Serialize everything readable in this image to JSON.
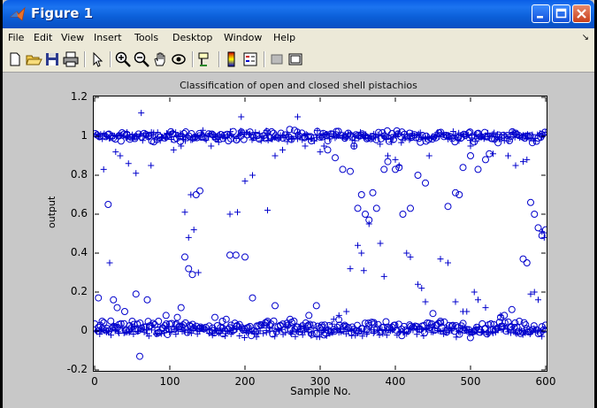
{
  "window": {
    "title": "Figure 1",
    "menu": [
      "File",
      "Edit",
      "View",
      "Insert",
      "Tools",
      "Desktop",
      "Window",
      "Help"
    ]
  },
  "toolbar": {
    "icons": [
      "new-figure-icon",
      "open-file-icon",
      "save-icon",
      "print-icon",
      "edit-plot-arrow-icon",
      "zoom-in-icon",
      "zoom-out-icon",
      "pan-icon",
      "rotate-3d-icon",
      "data-cursor-icon",
      "colorbar-icon",
      "legend-icon",
      "hide-plot-tools-icon",
      "show-plot-tools-icon"
    ]
  },
  "chart_data": {
    "type": "scatter",
    "title": "Classification of open and closed shell pistachios",
    "xlabel": "Sample No.",
    "ylabel": "output",
    "xlim": [
      0,
      600
    ],
    "ylim": [
      -0.2,
      1.2
    ],
    "xticks": [
      "0",
      "100",
      "200",
      "300",
      "400",
      "500",
      "600"
    ],
    "yticks": [
      "-0.2",
      "0",
      "0.2",
      "0.4",
      "0.6",
      "0.8",
      "1",
      "1.2"
    ],
    "grid": false,
    "marker_color": "#0000cc",
    "series": [
      {
        "marker": "plus",
        "points": [
          [
            5,
            1.0
          ],
          [
            12,
            0.83
          ],
          [
            20,
            0.35
          ],
          [
            28,
            0.92
          ],
          [
            34,
            0.9
          ],
          [
            45,
            0.86
          ],
          [
            55,
            0.81
          ],
          [
            62,
            1.12
          ],
          [
            75,
            0.85
          ],
          [
            95,
            0.99
          ],
          [
            105,
            0.93
          ],
          [
            115,
            0.95
          ],
          [
            120,
            0.61
          ],
          [
            125,
            0.48
          ],
          [
            128,
            0.7
          ],
          [
            132,
            0.52
          ],
          [
            138,
            0.3
          ],
          [
            155,
            0.95
          ],
          [
            165,
            0.97
          ],
          [
            180,
            0.6
          ],
          [
            190,
            0.61
          ],
          [
            195,
            1.1
          ],
          [
            200,
            0.77
          ],
          [
            210,
            0.8
          ],
          [
            230,
            0.62
          ],
          [
            240,
            0.9
          ],
          [
            250,
            0.93
          ],
          [
            270,
            1.1
          ],
          [
            280,
            0.95
          ],
          [
            300,
            0.92
          ],
          [
            305,
            0.95
          ],
          [
            318,
            0.06
          ],
          [
            325,
            0.08
          ],
          [
            335,
            0.1
          ],
          [
            340,
            0.32
          ],
          [
            345,
            0.95
          ],
          [
            350,
            0.44
          ],
          [
            355,
            0.4
          ],
          [
            358,
            0.31
          ],
          [
            365,
            0.55
          ],
          [
            380,
            0.45
          ],
          [
            385,
            0.28
          ],
          [
            390,
            0.9
          ],
          [
            395,
            0.97
          ],
          [
            400,
            0.88
          ],
          [
            405,
            0.85
          ],
          [
            415,
            0.4
          ],
          [
            420,
            0.38
          ],
          [
            430,
            0.24
          ],
          [
            435,
            0.22
          ],
          [
            440,
            0.15
          ],
          [
            445,
            0.9
          ],
          [
            460,
            0.37
          ],
          [
            470,
            0.35
          ],
          [
            480,
            0.15
          ],
          [
            490,
            0.1
          ],
          [
            495,
            0.1
          ],
          [
            500,
            0.95
          ],
          [
            505,
            0.2
          ],
          [
            510,
            0.16
          ],
          [
            520,
            0.12
          ],
          [
            530,
            0.91
          ],
          [
            540,
            0.08
          ],
          [
            550,
            0.9
          ],
          [
            560,
            0.85
          ],
          [
            570,
            0.87
          ],
          [
            575,
            0.88
          ],
          [
            580,
            0.19
          ],
          [
            585,
            0.2
          ],
          [
            590,
            0.16
          ],
          [
            595,
            0.51
          ],
          [
            598,
            0.48
          ]
        ]
      },
      {
        "marker": "circle",
        "points": [
          [
            5,
            0.17
          ],
          [
            10,
            0.05
          ],
          [
            18,
            0.65
          ],
          [
            25,
            0.16
          ],
          [
            30,
            0.12
          ],
          [
            40,
            0.1
          ],
          [
            50,
            0.05
          ],
          [
            55,
            0.19
          ],
          [
            60,
            -0.13
          ],
          [
            70,
            0.16
          ],
          [
            85,
            0.05
          ],
          [
            95,
            0.08
          ],
          [
            110,
            0.07
          ],
          [
            115,
            0.12
          ],
          [
            120,
            0.38
          ],
          [
            125,
            0.32
          ],
          [
            130,
            0.29
          ],
          [
            135,
            0.7
          ],
          [
            140,
            0.72
          ],
          [
            160,
            0.07
          ],
          [
            170,
            0.05
          ],
          [
            175,
            0.06
          ],
          [
            180,
            0.39
          ],
          [
            188,
            0.39
          ],
          [
            200,
            0.38
          ],
          [
            210,
            0.17
          ],
          [
            230,
            0.05
          ],
          [
            240,
            0.13
          ],
          [
            260,
            0.06
          ],
          [
            270,
            0.02
          ],
          [
            285,
            0.08
          ],
          [
            295,
            0.13
          ],
          [
            305,
            -0.02
          ],
          [
            310,
            0.93
          ],
          [
            320,
            0.89
          ],
          [
            330,
            0.83
          ],
          [
            340,
            0.82
          ],
          [
            345,
            0.95
          ],
          [
            350,
            0.63
          ],
          [
            355,
            0.7
          ],
          [
            360,
            0.6
          ],
          [
            365,
            0.57
          ],
          [
            370,
            0.71
          ],
          [
            375,
            0.63
          ],
          [
            385,
            0.83
          ],
          [
            390,
            0.87
          ],
          [
            400,
            0.83
          ],
          [
            405,
            0.84
          ],
          [
            410,
            0.6
          ],
          [
            420,
            0.63
          ],
          [
            430,
            0.8
          ],
          [
            440,
            0.76
          ],
          [
            450,
            0.09
          ],
          [
            460,
            0.05
          ],
          [
            470,
            0.64
          ],
          [
            480,
            0.71
          ],
          [
            485,
            0.7
          ],
          [
            490,
            0.84
          ],
          [
            500,
            0.9
          ],
          [
            510,
            0.83
          ],
          [
            520,
            0.88
          ],
          [
            525,
            0.91
          ],
          [
            540,
            0.07
          ],
          [
            545,
            0.08
          ],
          [
            555,
            0.11
          ],
          [
            565,
            0.05
          ],
          [
            570,
            0.37
          ],
          [
            575,
            0.35
          ],
          [
            580,
            0.66
          ],
          [
            585,
            0.6
          ],
          [
            590,
            0.53
          ],
          [
            595,
            0.49
          ],
          [
            600,
            0.52
          ]
        ]
      }
    ],
    "clusters": [
      {
        "marker": "plus",
        "center": 1.0,
        "spread": 0.035,
        "x_range": [
          0,
          600
        ],
        "count": 260
      },
      {
        "marker": "circle",
        "center": 1.0,
        "spread": 0.04,
        "x_range": [
          0,
          600
        ],
        "count": 200
      },
      {
        "marker": "plus",
        "center": 0.0,
        "spread": 0.035,
        "x_range": [
          0,
          600
        ],
        "count": 260
      },
      {
        "marker": "circle",
        "center": 0.02,
        "spread": 0.045,
        "x_range": [
          0,
          600
        ],
        "count": 260
      }
    ]
  }
}
